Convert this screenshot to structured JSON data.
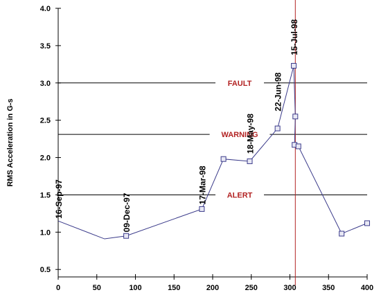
{
  "chart_data": {
    "type": "line",
    "title": "",
    "xlabel": "",
    "ylabel": "RMS Acceleration in G-s",
    "xlim": [
      0,
      400
    ],
    "ylim": [
      0.4,
      4.0
    ],
    "x_ticks": [
      0,
      50,
      100,
      150,
      200,
      250,
      300,
      350,
      400
    ],
    "y_ticks": [
      "0.5",
      "1.0",
      "1.5",
      "2.0",
      "2.5",
      "3.0",
      "3.5",
      "4.0"
    ],
    "series": [
      {
        "color": "#3a3a8a",
        "points": [
          {
            "x": 0,
            "y": 1.15,
            "marker": false
          },
          {
            "x": 60,
            "y": 0.91,
            "marker": false
          },
          {
            "x": 88,
            "y": 0.95,
            "marker": true
          },
          {
            "x": 186,
            "y": 1.31,
            "marker": true
          },
          {
            "x": 214,
            "y": 1.98,
            "marker": true
          },
          {
            "x": 248,
            "y": 1.95,
            "marker": true
          },
          {
            "x": 284,
            "y": 2.39,
            "marker": true
          },
          {
            "x": 305,
            "y": 3.23,
            "marker": true
          },
          {
            "x": 307,
            "y": 2.55,
            "marker": true
          },
          {
            "x": 306,
            "y": 2.17,
            "marker": true
          },
          {
            "x": 311,
            "y": 2.15,
            "marker": true
          },
          {
            "x": 367,
            "y": 0.98,
            "marker": true
          },
          {
            "x": 400,
            "y": 1.12,
            "marker": true
          }
        ]
      }
    ],
    "thresholds": [
      {
        "label": "FAULT",
        "y": 3.0,
        "label_x": 235
      },
      {
        "label": "WARNING",
        "y": 2.31,
        "label_x": 235
      },
      {
        "label": "ALERT",
        "y": 1.5,
        "label_x": 235
      }
    ],
    "threshold_label_color": "#b22222",
    "vertical_marker": {
      "x": 307,
      "color": "#b22222"
    },
    "date_labels": [
      {
        "text": "16-Sep-97",
        "x": 0,
        "y": 1.18
      },
      {
        "text": "09-Dec-97",
        "x": 88,
        "y": 1.0
      },
      {
        "text": "17-Mar-98",
        "x": 186,
        "y": 1.37
      },
      {
        "text": "18-May-98",
        "x": 248,
        "y": 2.05
      },
      {
        "text": "22-Jun-98",
        "x": 284,
        "y": 2.62
      },
      {
        "text": "15-Jul-98",
        "x": 305,
        "y": 3.37
      }
    ]
  }
}
